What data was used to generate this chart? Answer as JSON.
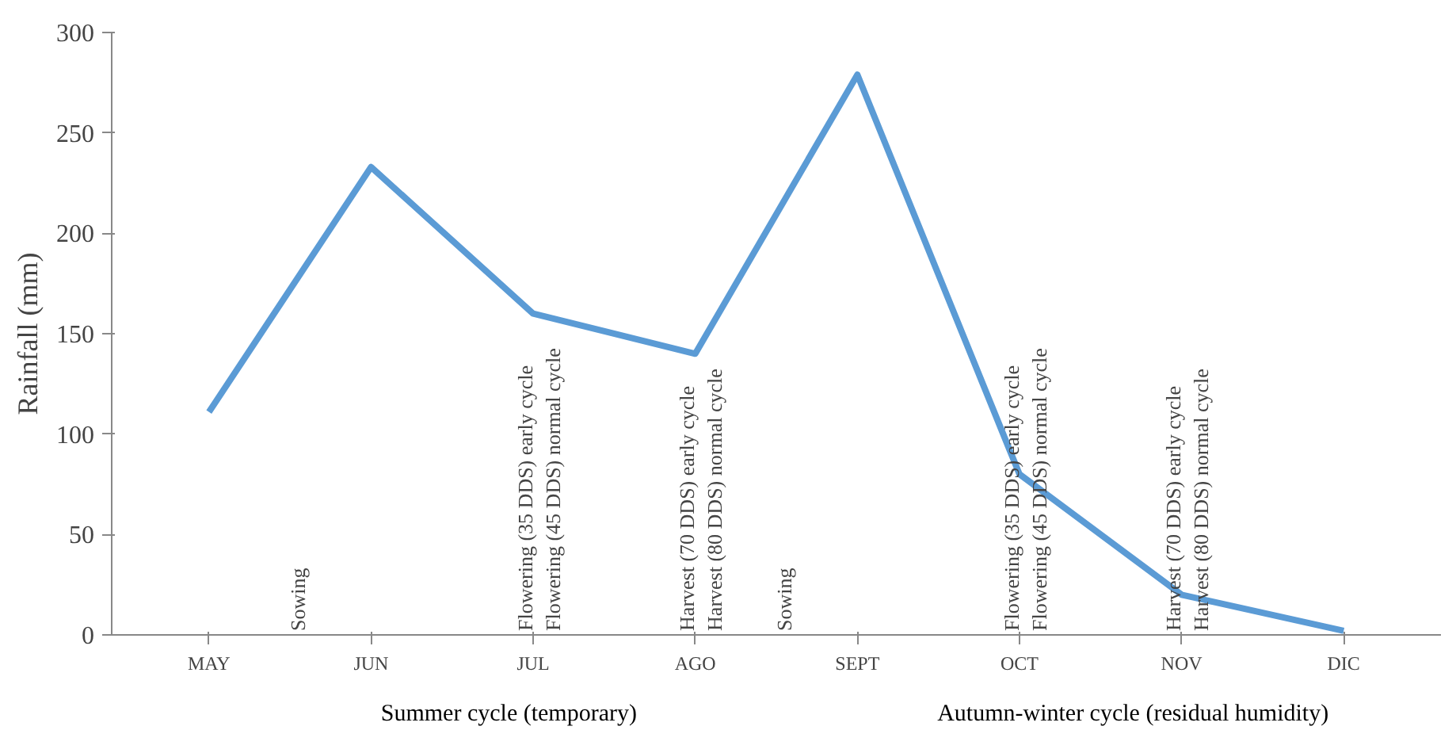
{
  "chart_data": {
    "type": "line",
    "ylabel": "Rainfall (mm)",
    "categories": [
      "MAY",
      "JUN",
      "JUL",
      "AGO",
      "SEPT",
      "OCT",
      "NOV",
      "DIC"
    ],
    "series": [
      {
        "color": "#5b9bd5",
        "values": [
          111,
          233,
          160,
          140,
          279,
          80,
          20,
          2
        ]
      }
    ],
    "ylim": [
      0,
      300
    ],
    "yticks": [
      0,
      50,
      100,
      150,
      200,
      250,
      300
    ],
    "grid": false,
    "marker": "none",
    "line_style": "solid",
    "annotations": [
      "Sowing",
      "Flowering (35 DDS) early cycle",
      "Flowering (45 DDS) normal cycle",
      "Harvest (70 DDS) early cycle",
      "Harvest (80 DDS) normal cycle",
      "Sowing",
      "Flowering (35 DDS) early cycle",
      "Flowering (45 DDS) normal cycle",
      "Harvest (70 DDS) early cycle",
      "Harvest (80 DDS) normal cycle",
      "Summer cycle (temporary)",
      "Autumn-winter cycle (residual humidity)"
    ]
  }
}
